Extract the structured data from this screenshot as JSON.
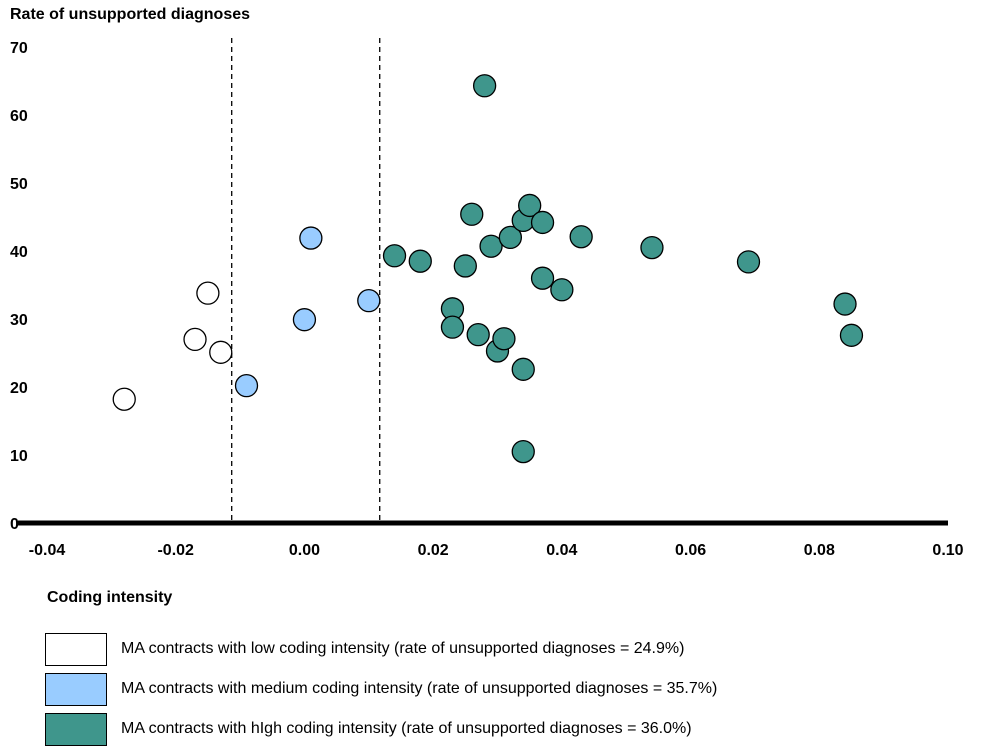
{
  "chart_data": {
    "type": "scatter",
    "ylabel": "Rate of unsupported diagnoses",
    "xlabel": "",
    "xlim": [
      -0.04,
      0.1
    ],
    "ylim": [
      0,
      70
    ],
    "x_ticks": [
      "-0.04",
      "-0.02",
      "0.00",
      "0.02",
      "0.04",
      "0.06",
      "0.08",
      "0.10"
    ],
    "y_ticks": [
      "0",
      "10",
      "20",
      "30",
      "40",
      "50",
      "60",
      "70"
    ],
    "vertical_reference_lines_x": [
      -0.0113,
      0.0117
    ],
    "legend_title": "Coding intensity",
    "legend_placement": "bottom",
    "grid": false,
    "series": [
      {
        "name": "MA contracts with low coding intensity (rate of unsupported diagnoses = 24.9%)",
        "color": "#ffffff",
        "points": [
          [
            -0.028,
            18.2
          ],
          [
            -0.017,
            27.0
          ],
          [
            -0.015,
            33.8
          ],
          [
            -0.013,
            25.1
          ]
        ]
      },
      {
        "name": "MA contracts with medium coding intensity (rate of unsupported diagnoses = 35.7%)",
        "color": "#99ccff",
        "points": [
          [
            -0.009,
            20.2
          ],
          [
            0.0,
            29.9
          ],
          [
            0.001,
            41.9
          ],
          [
            0.01,
            32.7
          ]
        ]
      },
      {
        "name": "MA contracts with hIgh coding intensity (rate of unsupported diagnoses = 36.0%)",
        "color": "#3f968c",
        "points": [
          [
            0.014,
            39.3
          ],
          [
            0.018,
            38.5
          ],
          [
            0.023,
            31.5
          ],
          [
            0.023,
            28.8
          ],
          [
            0.025,
            37.8
          ],
          [
            0.026,
            45.4
          ],
          [
            0.027,
            27.7
          ],
          [
            0.028,
            64.3
          ],
          [
            0.029,
            40.7
          ],
          [
            0.03,
            25.3
          ],
          [
            0.031,
            27.1
          ],
          [
            0.032,
            42.0
          ],
          [
            0.034,
            44.5
          ],
          [
            0.034,
            22.6
          ],
          [
            0.034,
            10.5
          ],
          [
            0.035,
            46.7
          ],
          [
            0.037,
            44.2
          ],
          [
            0.037,
            36.0
          ],
          [
            0.04,
            34.3
          ],
          [
            0.043,
            42.1
          ],
          [
            0.054,
            40.5
          ],
          [
            0.069,
            38.4
          ],
          [
            0.084,
            32.2
          ],
          [
            0.085,
            27.6
          ]
        ]
      }
    ]
  }
}
